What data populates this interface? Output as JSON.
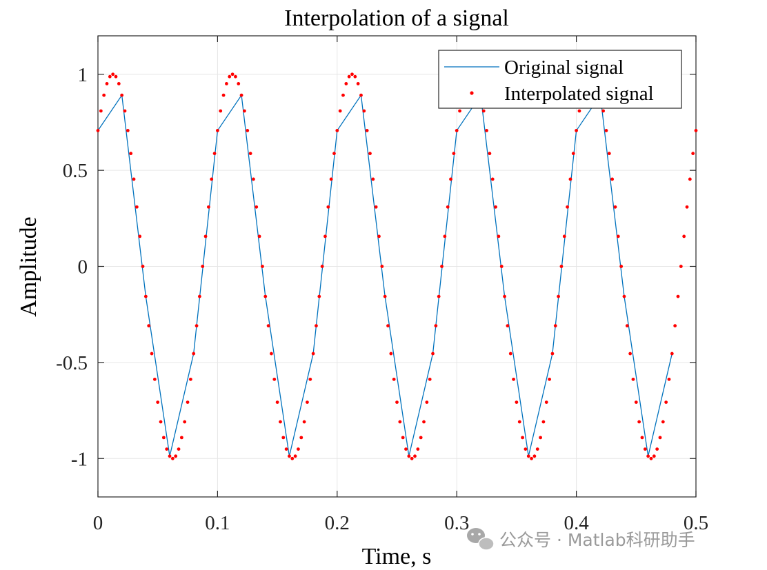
{
  "chart_data": {
    "type": "line",
    "title": "Interpolation of a signal",
    "xlabel": "Time, s",
    "ylabel": "Amplitude",
    "xlim": [
      0,
      0.5
    ],
    "ylim": [
      -1.2,
      1.2
    ],
    "grid": true,
    "legend_position": "top-right",
    "xticks": [
      0,
      0.1,
      0.2,
      0.3,
      0.4,
      0.5
    ],
    "xtick_labels": [
      "0",
      "0.1",
      "0.2",
      "0.3",
      "0.4",
      "0.5"
    ],
    "yticks": [
      1,
      0.5,
      0,
      -0.5,
      -1
    ],
    "ytick_labels": [
      "1",
      "0.5",
      "0",
      "-0.5",
      "-1"
    ],
    "series": [
      {
        "name": "Original signal",
        "style": "line",
        "color": "#0072BD",
        "x": [
          0,
          0.02,
          0.04,
          0.06,
          0.08,
          0.1,
          0.12,
          0.14,
          0.16,
          0.18,
          0.2,
          0.22,
          0.24,
          0.26,
          0.28,
          0.3,
          0.32,
          0.34,
          0.36,
          0.38,
          0.4,
          0.42,
          0.44,
          0.46,
          0.48
        ],
        "y": [
          0.707,
          0.891,
          -0.156,
          -0.988,
          -0.454,
          0.707,
          0.891,
          -0.156,
          -0.988,
          -0.454,
          0.707,
          0.891,
          -0.156,
          -0.988,
          -0.454,
          0.707,
          0.891,
          -0.156,
          -0.988,
          -0.454,
          0.707,
          0.891,
          -0.156,
          -0.988,
          -0.454
        ]
      },
      {
        "name": "Interpolated signal",
        "style": "markers",
        "color": "#FF0000",
        "function": "sin(2*pi*10*t + pi/4)",
        "x_start": 0,
        "x_end": 0.5,
        "x_step": 0.0025
      }
    ]
  },
  "watermark": {
    "text": "公众号 · Matlab科研助手",
    "icon": "wechat-icon"
  }
}
